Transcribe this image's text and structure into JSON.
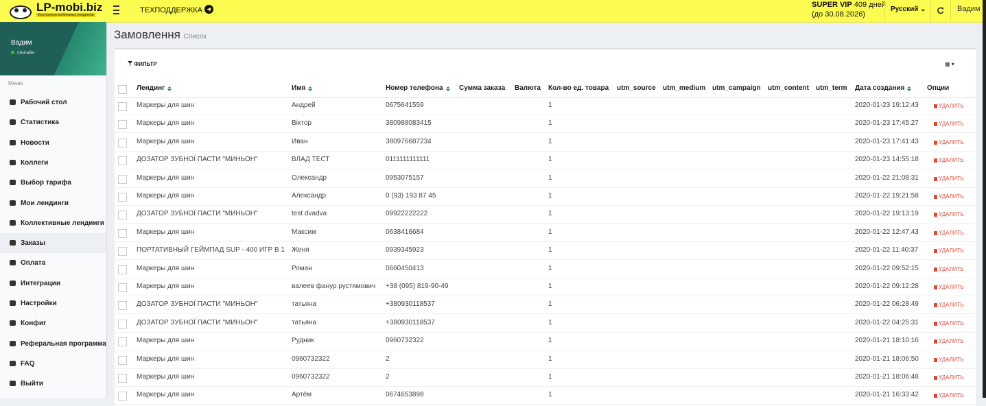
{
  "header": {
    "logo_title": "LP-mobi.biz",
    "logo_subtitle": "Конструктор мобильных лендингов",
    "support": "ТЕХПОДДЕРЖКА",
    "plan": "SUPER VIP",
    "days": "409 дней",
    "until": "(до 30.08.2026)",
    "language": "Русский",
    "user": "Вадим"
  },
  "sidebar": {
    "user_name": "Вадим",
    "status": "Онлайн",
    "menu_label": "Меню",
    "menu": [
      "Рабочий стол",
      "Статистика",
      "Новости",
      "Коллеги",
      "Выбор тарифа",
      "Мои лендинги",
      "Коллективные лендинги",
      "Заказы",
      "Оплата",
      "Интеграции",
      "Настройки",
      "Конфиг",
      "Реферальная программа",
      "FAQ",
      "Выйти"
    ],
    "active": 7
  },
  "page": {
    "title": "Замовлення",
    "subtitle": "Список",
    "filter": "ФИЛЬТР"
  },
  "table": {
    "columns": [
      "Лендинг",
      "Имя",
      "Номер телефона",
      "Сумма заказа",
      "Валюта",
      "Кол-во ед. товара",
      "utm_source",
      "utm_medium",
      "utm_campaign",
      "utm_content",
      "utm_term",
      "Дата создания",
      "Опции"
    ],
    "delete_label": "удалить",
    "rows": [
      {
        "landing": "Маркеры для шин",
        "name": "Андрей",
        "phone": "0675641559",
        "qty": 1,
        "date": "2020-01-23 19:12:43"
      },
      {
        "landing": "Маркеры для шин",
        "name": "Віктор",
        "phone": "380988083415",
        "qty": 1,
        "date": "2020-01-23 17:45:27"
      },
      {
        "landing": "Маркеры для шин",
        "name": "Иван",
        "phone": "380976687234",
        "qty": 1,
        "date": "2020-01-23 17:41:43"
      },
      {
        "landing": "ДОЗАТОР ЗУБНОЇ ПАСТИ \"МИНЬОН\"",
        "name": "ВЛАД ТЕСТ",
        "phone": "0111111111111",
        "qty": 1,
        "date": "2020-01-23 14:55:18"
      },
      {
        "landing": "Маркеры для шин",
        "name": "Олександр",
        "phone": "0953075157",
        "qty": 1,
        "date": "2020-01-22 21:08:31"
      },
      {
        "landing": "Маркеры для шин",
        "name": "Александр",
        "phone": "0 (93) 193 87 45",
        "qty": 1,
        "date": "2020-01-22 19:21:58"
      },
      {
        "landing": "ДОЗАТОР ЗУБНОЇ ПАСТИ \"МИНЬОН\"",
        "name": "test dvadva",
        "phone": "09922222222",
        "qty": 1,
        "date": "2020-01-22 19:13:19"
      },
      {
        "landing": "Маркеры для шин",
        "name": "Максим",
        "phone": "0638416684",
        "qty": 1,
        "date": "2020-01-22 12:47:43"
      },
      {
        "landing": "ПОРТАТИВНЫЙ ГЕЙМПАД SUP - 400 ИГР В 1",
        "name": "Женя",
        "phone": "0939345923",
        "qty": 1,
        "date": "2020-01-22 11:40:37"
      },
      {
        "landing": "Маркеры для шин",
        "name": "Роман",
        "phone": "0660450413",
        "qty": 1,
        "date": "2020-01-22 09:52:15"
      },
      {
        "landing": "Маркеры для шин",
        "name": "валеев фанур рустямович",
        "phone": "+38 (095) 819-90-49",
        "qty": 1,
        "date": "2020-01-22 09:12:28"
      },
      {
        "landing": "ДОЗАТОР ЗУБНОЇ ПАСТИ \"МИНЬОН\"",
        "name": "татьяна",
        "phone": "+380930118537",
        "qty": 1,
        "date": "2020-01-22 06:28:49"
      },
      {
        "landing": "ДОЗАТОР ЗУБНОЇ ПАСТИ \"МИНЬОН\"",
        "name": "татьяна",
        "phone": "+380930118537",
        "qty": 1,
        "date": "2020-01-22 04:25:31"
      },
      {
        "landing": "Маркеры для шин",
        "name": "Рудник",
        "phone": "0960732322",
        "qty": 1,
        "date": "2020-01-21 18:10:16"
      },
      {
        "landing": "Маркеры для шин",
        "name": "0960732322",
        "phone": "2",
        "qty": 1,
        "date": "2020-01-21 18:06:50"
      },
      {
        "landing": "Маркеры для шин",
        "name": "0960732322",
        "phone": "2",
        "qty": 1,
        "date": "2020-01-21 18:06:48"
      },
      {
        "landing": "Маркеры для шин",
        "name": "Артём",
        "phone": "0674653898",
        "qty": 1,
        "date": "2020-01-21 16:33:42"
      }
    ]
  }
}
